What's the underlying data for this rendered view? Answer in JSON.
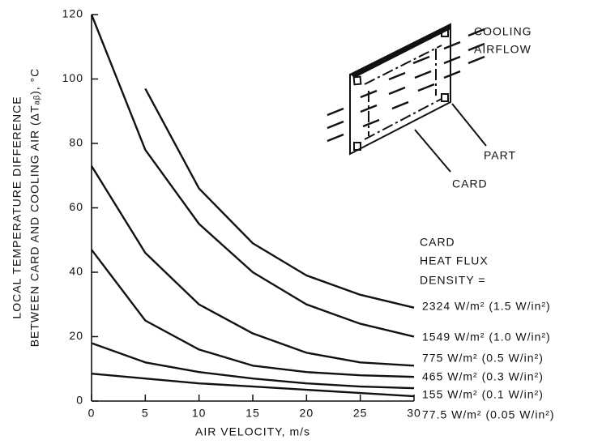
{
  "chart_data": {
    "type": "line",
    "x_label": "AIR VELOCITY, m/s",
    "y_label": [
      "LOCAL TEMPERATURE DIFFERENCE",
      "BETWEEN CARD AND COOLING AIR (ΔTₐᵦ), °C"
    ],
    "legend_title": [
      "CARD",
      "HEAT FLUX",
      "DENSITY ="
    ],
    "annotations": [
      "COOLING",
      "AIRFLOW",
      "PART",
      "CARD"
    ],
    "x": [
      0,
      5,
      10,
      15,
      20,
      25,
      30
    ],
    "series": [
      {
        "name": "2324 W/m² (1.5 W/in²)",
        "color": "#111111",
        "values": [
          null,
          97,
          66,
          49,
          39,
          33,
          29
        ]
      },
      {
        "name": "1549 W/m² (1.0 W/in²)",
        "color": "#111111",
        "values": [
          120,
          78,
          55,
          40,
          30,
          24,
          20
        ]
      },
      {
        "name": "775 W/m² (0.5 W/in²)",
        "color": "#111111",
        "values": [
          73,
          46,
          30,
          21,
          15,
          12,
          11
        ]
      },
      {
        "name": "465 W/m² (0.3 W/in²)",
        "color": "#111111",
        "values": [
          47,
          25,
          16,
          11,
          9,
          8,
          7.5
        ]
      },
      {
        "name": "155 W/m² (0.1 W/in²)",
        "color": "#111111",
        "values": [
          18,
          12,
          9,
          7,
          5.5,
          4.5,
          4
        ]
      },
      {
        "name": "77.5 W/m² (0.05 W/in²)",
        "color": "#111111",
        "values": [
          8.5,
          7,
          5.5,
          4.5,
          3.5,
          2.5,
          1.5
        ]
      }
    ],
    "xlim": [
      0,
      30
    ],
    "xticks": [
      0,
      5,
      10,
      15,
      20,
      25,
      30
    ],
    "ylim": [
      0,
      120
    ],
    "yticks": [
      0,
      20,
      40,
      60,
      80,
      100,
      120
    ]
  }
}
